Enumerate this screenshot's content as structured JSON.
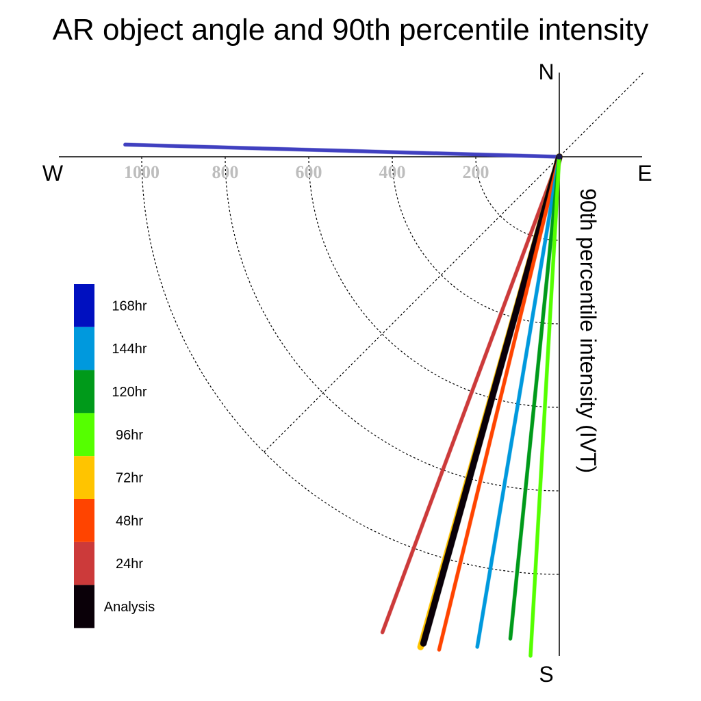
{
  "chart_data": {
    "type": "polar",
    "title": "AR object angle and 90th percentile intensity",
    "ylabel": "90th percentile intensity (IVT)",
    "directions": {
      "north": "N",
      "south": "S",
      "east": "E",
      "west": "W"
    },
    "radial_ticks": [
      200,
      400,
      600,
      800,
      1000
    ],
    "radial_tick_labels": [
      "200",
      "400",
      "600",
      "800",
      "1000"
    ],
    "radial_max": 1200,
    "grid": true,
    "legend_position": "left",
    "legend": [
      {
        "label": "168hr",
        "color": "#0010c0"
      },
      {
        "label": "144hr",
        "color": "#0099dd"
      },
      {
        "label": "120hr",
        "color": "#009a1a"
      },
      {
        "label": "96hr",
        "color": "#55ff00"
      },
      {
        "label": "72hr",
        "color": "#ffc400"
      },
      {
        "label": "48hr",
        "color": "#ff4400"
      },
      {
        "label": "24hr",
        "color": "#cc3a3a"
      },
      {
        "label": "Analysis",
        "color": "#0a0008"
      }
    ],
    "series": [
      {
        "name": "168hr",
        "angle_deg": 271.6,
        "intensity": 1040,
        "color": "#4040c0",
        "width": 5
      },
      {
        "name": "24hr",
        "angle_deg": 200.4,
        "intensity": 1215,
        "color": "#cc3a3a",
        "width": 5
      },
      {
        "name": "72hr",
        "angle_deg": 195.8,
        "intensity": 1220,
        "color": "#ffc400",
        "width": 9
      },
      {
        "name": "Analysis",
        "angle_deg": 195.6,
        "intensity": 1210,
        "color": "#0a0008",
        "width": 9
      },
      {
        "name": "48hr",
        "angle_deg": 193.7,
        "intensity": 1215,
        "color": "#ff4400",
        "width": 5
      },
      {
        "name": "144hr",
        "angle_deg": 189.5,
        "intensity": 1190,
        "color": "#0099dd",
        "width": 5
      },
      {
        "name": "120hr",
        "angle_deg": 185.8,
        "intensity": 1160,
        "color": "#009a1a",
        "width": 5
      },
      {
        "name": "96hr",
        "angle_deg": 183.3,
        "intensity": 1215,
        "color": "#55ff00",
        "width": 5
      }
    ]
  }
}
